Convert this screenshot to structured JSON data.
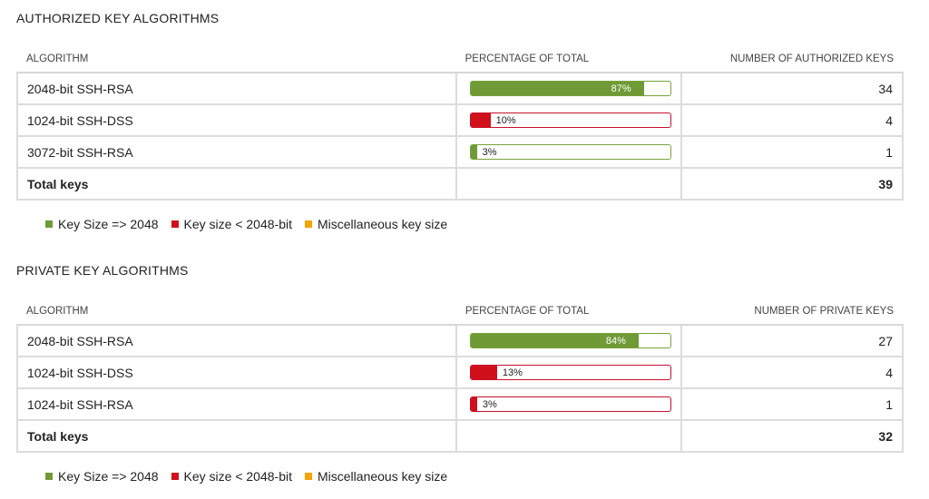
{
  "colors": {
    "green": "#6f9a36",
    "red": "#d0101a",
    "orange": "#f5a300"
  },
  "authorized": {
    "title": "AUTHORIZED KEY ALGORITHMS",
    "columns": [
      "ALGORITHM",
      "PERCENTAGE OF TOTAL",
      "NUMBER OF AUTHORIZED KEYS"
    ],
    "rows": [
      {
        "algorithm": "2048-bit SSH-RSA",
        "percent": "87%",
        "percent_value": 87,
        "status": "green",
        "count": "34"
      },
      {
        "algorithm": "1024-bit SSH-DSS",
        "percent": "10%",
        "percent_value": 10,
        "status": "red",
        "count": "4"
      },
      {
        "algorithm": "3072-bit SSH-RSA",
        "percent": "3%",
        "percent_value": 3,
        "status": "green",
        "count": "1"
      }
    ],
    "total_label": "Total keys",
    "total_value": "39"
  },
  "private": {
    "title": "PRIVATE KEY ALGORITHMS",
    "columns": [
      "ALGORITHM",
      "PERCENTAGE OF TOTAL",
      "NUMBER OF PRIVATE KEYS"
    ],
    "rows": [
      {
        "algorithm": "2048-bit SSH-RSA",
        "percent": "84%",
        "percent_value": 84,
        "status": "green",
        "count": "27"
      },
      {
        "algorithm": "1024-bit SSH-DSS",
        "percent": "13%",
        "percent_value": 13,
        "status": "red",
        "count": "4"
      },
      {
        "algorithm": "1024-bit SSH-RSA",
        "percent": "3%",
        "percent_value": 3,
        "status": "red",
        "count": "1"
      }
    ],
    "total_label": "Total keys",
    "total_value": "32"
  },
  "legend": [
    {
      "label": "Key Size => 2048",
      "color": "green"
    },
    {
      "label": "Key size < 2048-bit",
      "color": "red"
    },
    {
      "label": "Miscellaneous key size",
      "color": "orange"
    }
  ]
}
